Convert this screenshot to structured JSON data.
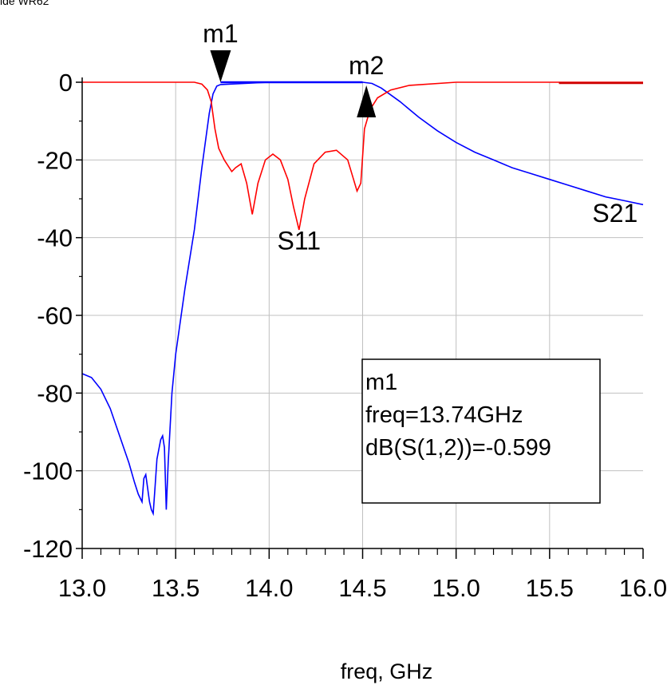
{
  "page": {
    "caption": "ide WR62"
  },
  "chart_data": {
    "type": "line",
    "xlabel": "freq, GHz",
    "ylabel": "",
    "xlim": [
      13.0,
      16.0
    ],
    "ylim": [
      -120,
      0
    ],
    "grid": true,
    "x_ticks": [
      "13.0",
      "13.5",
      "14.0",
      "14.5",
      "15.0",
      "15.5",
      "16.0"
    ],
    "y_ticks": [
      "0",
      "-20",
      "-40",
      "-60",
      "-80",
      "-100",
      "-120"
    ],
    "series": [
      {
        "name": "S21",
        "color": "#0000ff",
        "points": [
          [
            13.0,
            -75
          ],
          [
            13.05,
            -76
          ],
          [
            13.1,
            -79
          ],
          [
            13.15,
            -84
          ],
          [
            13.2,
            -91
          ],
          [
            13.25,
            -98
          ],
          [
            13.28,
            -103
          ],
          [
            13.3,
            -106
          ],
          [
            13.32,
            -108
          ],
          [
            13.33,
            -102
          ],
          [
            13.34,
            -101
          ],
          [
            13.36,
            -108
          ],
          [
            13.37,
            -110
          ],
          [
            13.38,
            -111
          ],
          [
            13.39,
            -104
          ],
          [
            13.4,
            -97
          ],
          [
            13.42,
            -92
          ],
          [
            13.43,
            -91
          ],
          [
            13.44,
            -94
          ],
          [
            13.45,
            -110
          ],
          [
            13.46,
            -98
          ],
          [
            13.48,
            -80
          ],
          [
            13.5,
            -70
          ],
          [
            13.55,
            -53
          ],
          [
            13.6,
            -38
          ],
          [
            13.64,
            -22
          ],
          [
            13.68,
            -8
          ],
          [
            13.7,
            -3
          ],
          [
            13.72,
            -1
          ],
          [
            13.74,
            -0.6
          ],
          [
            14.0,
            0
          ],
          [
            14.5,
            0
          ],
          [
            14.55,
            -0.3
          ],
          [
            14.6,
            -1.5
          ],
          [
            14.7,
            -5
          ],
          [
            14.8,
            -9
          ],
          [
            14.9,
            -12.5
          ],
          [
            15.0,
            -15.5
          ],
          [
            15.1,
            -18
          ],
          [
            15.2,
            -20
          ],
          [
            15.3,
            -22
          ],
          [
            15.4,
            -23.5
          ],
          [
            15.5,
            -25
          ],
          [
            15.6,
            -26.5
          ],
          [
            15.7,
            -28
          ],
          [
            15.8,
            -29.5
          ],
          [
            15.9,
            -30.5
          ],
          [
            16.0,
            -31.5
          ]
        ]
      },
      {
        "name": "S11",
        "color": "#ff0000",
        "points": [
          [
            13.0,
            0
          ],
          [
            13.6,
            0
          ],
          [
            13.64,
            -0.5
          ],
          [
            13.67,
            -2
          ],
          [
            13.69,
            -5
          ],
          [
            13.71,
            -12
          ],
          [
            13.73,
            -17
          ],
          [
            13.76,
            -20
          ],
          [
            13.8,
            -23
          ],
          [
            13.82,
            -22
          ],
          [
            13.85,
            -21
          ],
          [
            13.88,
            -26
          ],
          [
            13.91,
            -34
          ],
          [
            13.94,
            -26
          ],
          [
            13.98,
            -20
          ],
          [
            14.02,
            -18.5
          ],
          [
            14.06,
            -20
          ],
          [
            14.1,
            -25
          ],
          [
            14.13,
            -32
          ],
          [
            14.16,
            -38
          ],
          [
            14.19,
            -30
          ],
          [
            14.24,
            -21
          ],
          [
            14.3,
            -18
          ],
          [
            14.36,
            -17.5
          ],
          [
            14.42,
            -20
          ],
          [
            14.47,
            -28
          ],
          [
            14.49,
            -26
          ],
          [
            14.51,
            -12
          ],
          [
            14.54,
            -7
          ],
          [
            14.58,
            -4
          ],
          [
            14.65,
            -2
          ],
          [
            14.75,
            -0.8
          ],
          [
            15.0,
            0
          ],
          [
            16.0,
            0
          ]
        ]
      }
    ],
    "markers": [
      {
        "name": "m1",
        "x": 13.74,
        "y": 0,
        "direction": "down"
      },
      {
        "name": "m2",
        "x": 14.52,
        "y": 0,
        "direction": "up"
      }
    ],
    "annotations": [
      {
        "text": "S11",
        "x": 14.16,
        "y": -43
      },
      {
        "text": "S21",
        "x": 15.85,
        "y": -36
      }
    ],
    "marker_box": {
      "lines": [
        "m1",
        "freq=13.74GHz",
        "dB(S(1,2))=-0.599"
      ]
    }
  }
}
